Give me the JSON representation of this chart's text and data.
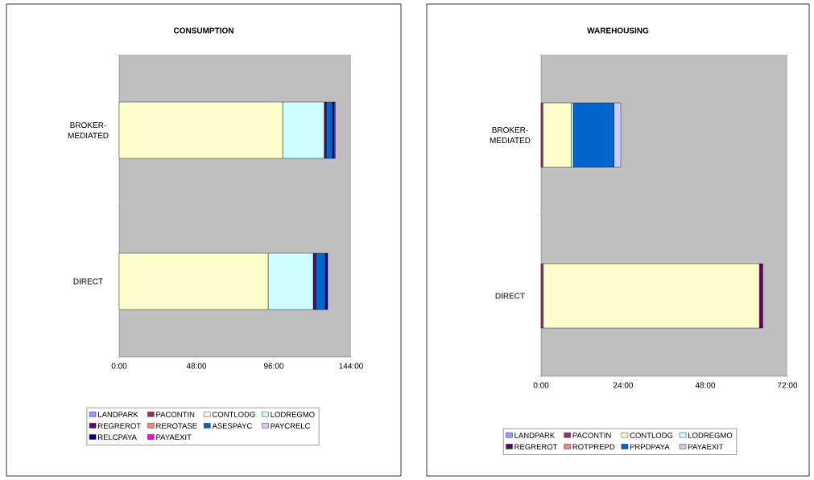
{
  "chart_data": [
    {
      "type": "bar",
      "title": "CONSUMPTION",
      "orientation": "horizontal",
      "stacked": true,
      "categories": [
        "BROKER-MEDIATED",
        "DIRECT"
      ],
      "xlim": [
        0,
        144
      ],
      "xticks": [
        {
          "value": 0,
          "label": "0:00"
        },
        {
          "value": 48,
          "label": "48:00"
        },
        {
          "value": 96,
          "label": "96:00"
        },
        {
          "value": 144,
          "label": "144:00"
        }
      ],
      "legend": "bottom",
      "grid": false,
      "series": [
        {
          "name": "LANDPARK",
          "color": "#9999ff",
          "values": [
            0,
            0
          ]
        },
        {
          "name": "PACONTIN",
          "color": "#993366",
          "values": [
            0,
            0
          ]
        },
        {
          "name": "CONTLODG",
          "color": "#ffffcc",
          "values": [
            101.5,
            92.5
          ]
        },
        {
          "name": "LODREGMO",
          "color": "#ccffff",
          "values": [
            25.8,
            28
          ]
        },
        {
          "name": "REGREROT",
          "color": "#660066",
          "values": [
            1.2,
            1.5
          ]
        },
        {
          "name": "REROTASE",
          "color": "#ff8080",
          "values": [
            0,
            0
          ]
        },
        {
          "name": "ASESPAYC",
          "color": "#0066cc",
          "values": [
            4,
            6
          ]
        },
        {
          "name": "PAYCRELC",
          "color": "#ccccff",
          "values": [
            0,
            0
          ]
        },
        {
          "name": "RELCPAYA",
          "color": "#000080",
          "values": [
            1,
            1.5
          ]
        },
        {
          "name": "PAYAEXIT",
          "color": "#ff00ff",
          "values": [
            0.7,
            0
          ]
        }
      ]
    },
    {
      "type": "bar",
      "title": "WAREHOUSING",
      "orientation": "horizontal",
      "stacked": true,
      "categories": [
        "BROKER-MEDIATED",
        "DIRECT"
      ],
      "xlim": [
        0,
        72
      ],
      "xticks": [
        {
          "value": 0,
          "label": "0:00"
        },
        {
          "value": 24,
          "label": "24:00"
        },
        {
          "value": 48,
          "label": "48:00"
        },
        {
          "value": 72,
          "label": "72:00"
        }
      ],
      "legend": "bottom",
      "grid": false,
      "series": [
        {
          "name": "LANDPARK",
          "color": "#9999ff",
          "values": [
            0,
            0
          ]
        },
        {
          "name": "PACONTIN",
          "color": "#993366",
          "values": [
            0.5,
            0.6
          ]
        },
        {
          "name": "CONTLODG",
          "color": "#ffffcc",
          "values": [
            8.3,
            63.2
          ]
        },
        {
          "name": "LODREGMO",
          "color": "#ccffff",
          "values": [
            0.6,
            0
          ]
        },
        {
          "name": "REGREROT",
          "color": "#660066",
          "values": [
            0,
            1
          ]
        },
        {
          "name": "ROTPREPD",
          "color": "#ff8080",
          "values": [
            0,
            0
          ]
        },
        {
          "name": "PRPDPAYA",
          "color": "#0066cc",
          "values": [
            11.9,
            0
          ]
        },
        {
          "name": "PAYAEXIT",
          "color": "#ccccff",
          "values": [
            2,
            0
          ]
        }
      ]
    }
  ]
}
